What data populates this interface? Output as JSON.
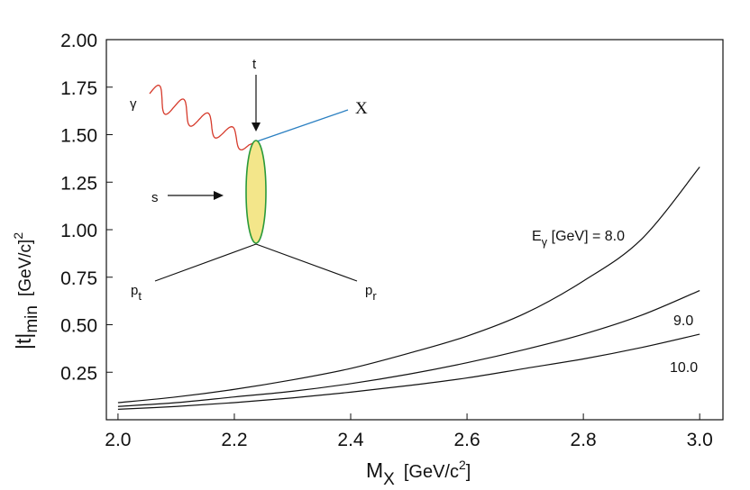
{
  "chart_data": {
    "type": "line",
    "xlabel": "M",
    "xlabel_sub": "X",
    "xlabel_units": "[GeV/c",
    "xlabel_units_sup": "2",
    "xlabel_units_close": "]",
    "ylabel": "|t|",
    "ylabel_sub": "min",
    "ylabel_units": "[GeV/c]",
    "ylabel_units_sup": "2",
    "xlim": [
      1.98,
      3.04
    ],
    "ylim": [
      0.0,
      2.0
    ],
    "xticks": [
      "2.0",
      "2.2",
      "2.4",
      "2.6",
      "2.8",
      "3.0"
    ],
    "yticks": [
      "0.25",
      "0.50",
      "0.75",
      "1.00",
      "1.25",
      "1.50",
      "1.75",
      "2.00"
    ],
    "x_start_for_curves": 2.0,
    "x_end_for_curves": 3.0,
    "series": [
      {
        "name": "8.0",
        "label_prefix": "E",
        "label_sub": "γ",
        "label_rest": " [GeV] = 8.0",
        "x": [
          2.0,
          2.1,
          2.2,
          2.3,
          2.4,
          2.5,
          2.6,
          2.7,
          2.8,
          2.9,
          3.0
        ],
        "values": [
          0.09,
          0.12,
          0.16,
          0.21,
          0.27,
          0.35,
          0.44,
          0.56,
          0.73,
          0.95,
          1.33
        ]
      },
      {
        "name": "9.0",
        "label_prefix": "",
        "label_sub": "",
        "label_rest": "9.0",
        "x": [
          2.0,
          2.1,
          2.2,
          2.3,
          2.4,
          2.5,
          2.6,
          2.7,
          2.8,
          2.9,
          3.0
        ],
        "values": [
          0.07,
          0.09,
          0.12,
          0.15,
          0.19,
          0.24,
          0.3,
          0.37,
          0.45,
          0.55,
          0.68
        ]
      },
      {
        "name": "10.0",
        "label_prefix": "",
        "label_sub": "",
        "label_rest": "10.0",
        "x": [
          2.0,
          2.1,
          2.2,
          2.3,
          2.4,
          2.5,
          2.6,
          2.7,
          2.8,
          2.9,
          3.0
        ],
        "values": [
          0.055,
          0.07,
          0.09,
          0.115,
          0.145,
          0.18,
          0.22,
          0.27,
          0.32,
          0.38,
          0.45
        ]
      }
    ],
    "grid": false,
    "legend": "inline labels"
  },
  "inset": {
    "t_label": "t",
    "gamma_label": "γ",
    "x_label": "X",
    "s_label": "s",
    "pt_label": "p",
    "pt_sub": "t",
    "pr_label": "p",
    "pr_sub": "r"
  },
  "colors": {
    "photon": "#d63a2b",
    "x_line": "#2a7fc1",
    "blob_fill": "#f3e68a",
    "blob_stroke": "#2a9a3a",
    "axis": "#111111",
    "curve": "#111111"
  }
}
